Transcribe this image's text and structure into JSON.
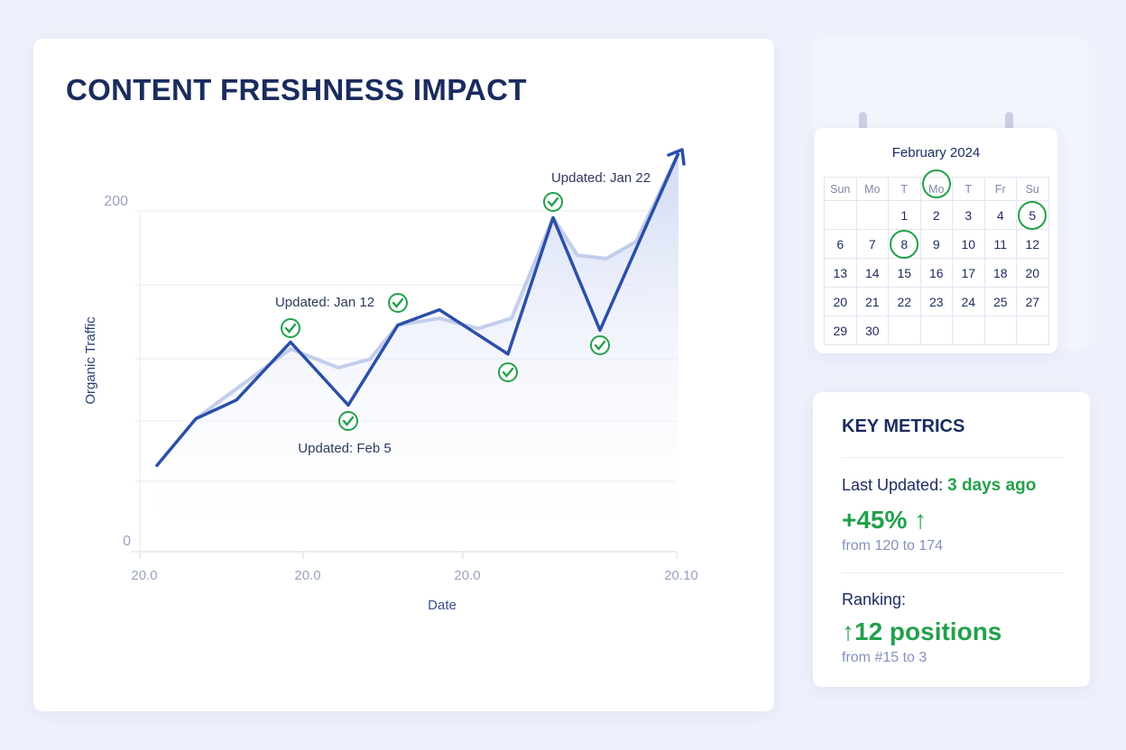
{
  "title": "CONTENT FRESHNESS IMPACT",
  "chart_data": {
    "type": "line",
    "title": "CONTENT FRESHNESS IMPACT",
    "xlabel": "Date",
    "ylabel": "Organic Traffic",
    "y_ticks": [
      "200",
      "0"
    ],
    "x_ticks": [
      "20.0",
      "20.0",
      "20.0",
      "20.10"
    ],
    "ylim": [
      0,
      200
    ],
    "grid": true,
    "colors": {
      "line": "#2a4fa8",
      "area": "#c9d3f2",
      "check": "#22a04b"
    },
    "series": [
      {
        "values": [
          50,
          78,
          89,
          123,
          86,
          133,
          142,
          116,
          196,
          130,
          234
        ]
      },
      {
        "values": [
          78,
          119,
          108,
          113,
          133,
          137,
          131,
          137,
          196,
          174,
          172,
          182,
          234
        ]
      }
    ],
    "annotations": [
      "Updated: Jan 12",
      "Updated: Feb 5",
      "Updated: Jan 22"
    ],
    "update_markers": 6
  },
  "calendar": {
    "month": "February 2024",
    "headers": [
      "Sun",
      "Mo",
      "T",
      "Mo",
      "T",
      "Fr",
      "Su"
    ],
    "weeks": [
      [
        "",
        "",
        "1",
        "2",
        "3",
        "4",
        "5"
      ],
      [
        "6",
        "7",
        "8",
        "9",
        "10",
        "11",
        "12"
      ],
      [
        "13",
        "14",
        "15",
        "16",
        "17",
        "18",
        "20"
      ],
      [
        "20",
        "21",
        "22",
        "23",
        "24",
        "25",
        "27"
      ],
      [
        "29",
        "30",
        "",
        "",
        "",
        "",
        ""
      ]
    ],
    "circled": [
      "header-3",
      "5",
      "8"
    ]
  },
  "metrics": {
    "title": "KEY METRICS",
    "last_updated_label": "Last Updated:",
    "last_updated_value": "3 days ago",
    "traffic_change": "+45% ↑",
    "traffic_sub": "from 120 to 174",
    "ranking_label": "Ranking:",
    "ranking_change": "↑12 positions",
    "ranking_sub": "from #15 to 3"
  }
}
